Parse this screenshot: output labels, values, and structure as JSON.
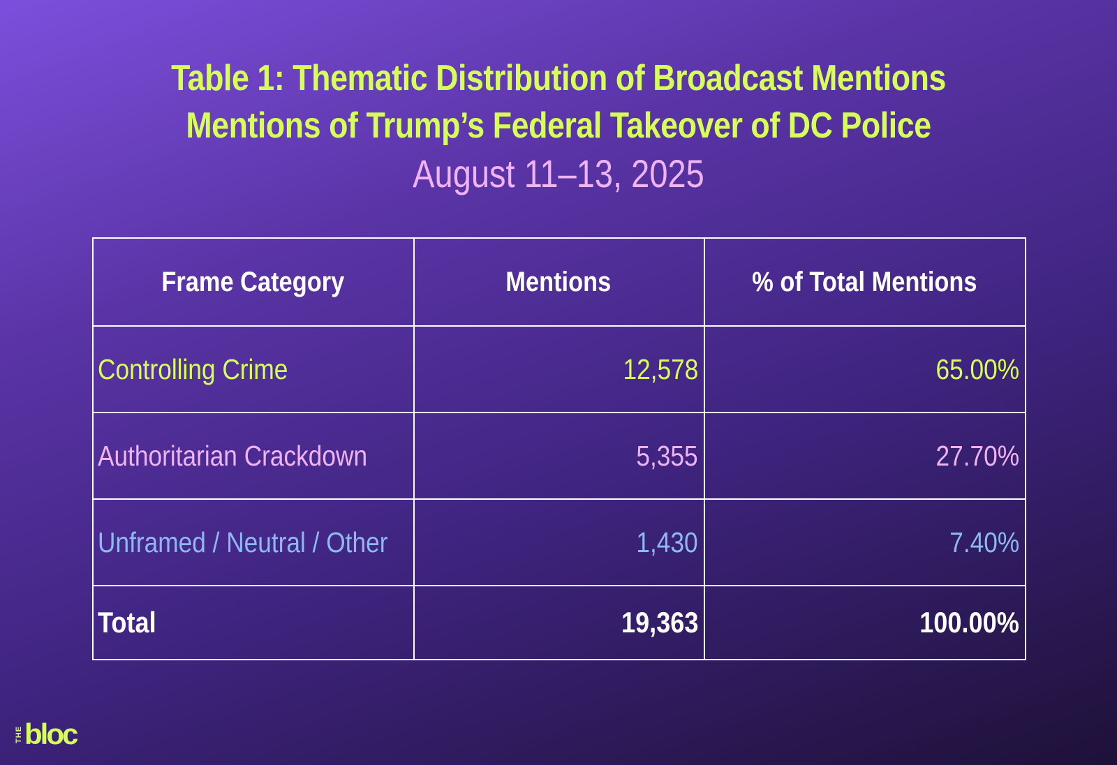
{
  "title": {
    "line1": "Table 1: Thematic Distribution of Broadcast Mentions",
    "line2": "Mentions of Trump’s Federal Takeover of DC Police",
    "subtitle": "August 11–13, 2025"
  },
  "colors": {
    "title": "#d6ff57",
    "subtitle": "#f0b3f3",
    "controlling_crime": "#d6ff57",
    "authoritarian_crackdown": "#f0b3f3",
    "unframed": "#8fb8f0",
    "total": "#ffffff",
    "border": "#ffffff"
  },
  "chart_data": {
    "type": "table",
    "title": "Table 1: Thematic Distribution of Broadcast Mentions",
    "subtitle": "Mentions of Trump’s Federal Takeover of DC Police",
    "date_range": "August 11–13, 2025",
    "columns": [
      "Frame Category",
      "Mentions",
      "% of Total Mentions"
    ],
    "rows": [
      {
        "category": "Controlling Crime",
        "mentions": "12,578",
        "percent": "65.00%",
        "color": "#d6ff57"
      },
      {
        "category": "Authoritarian Crackdown",
        "mentions": "5,355",
        "percent": "27.70%",
        "color": "#f0b3f3"
      },
      {
        "category": "Unframed / Neutral / Other",
        "mentions": "1,430",
        "percent": "7.40%",
        "color": "#8fb8f0"
      }
    ],
    "total": {
      "category": "Total",
      "mentions": "19,363",
      "percent": "100.00%"
    }
  },
  "logo": {
    "small": "THE",
    "main": "bloc"
  }
}
